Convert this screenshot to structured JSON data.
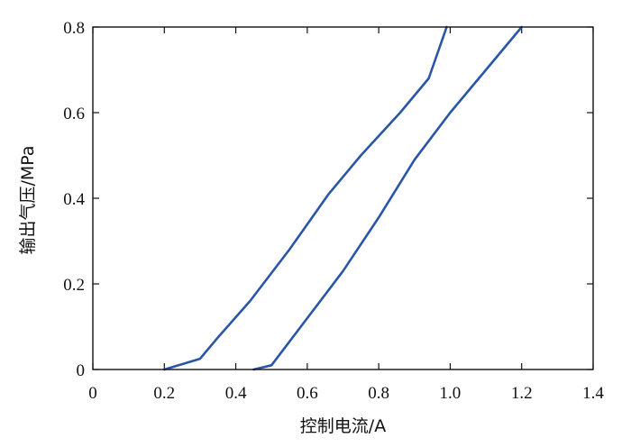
{
  "chart_data": {
    "type": "line",
    "xlabel": "控制电流/A",
    "ylabel": "输出气压/MPa",
    "xlim": [
      0,
      1.4
    ],
    "ylim": [
      0,
      0.8
    ],
    "x_ticks": [
      "0",
      "0.2",
      "0.4",
      "0.6",
      "0.8",
      "1.0",
      "1.2",
      "1.4"
    ],
    "y_ticks": [
      "0",
      "0.2",
      "0.4",
      "0.6",
      "0.8"
    ],
    "grid": false,
    "line_color": "#2a56a8",
    "series": [
      {
        "x": [
          0.2,
          0.28,
          0.3,
          0.35,
          0.44,
          0.55,
          0.66,
          0.75,
          0.86,
          0.94,
          0.99
        ],
        "y": [
          0.0,
          0.02,
          0.025,
          0.075,
          0.16,
          0.28,
          0.41,
          0.5,
          0.6,
          0.68,
          0.8
        ]
      },
      {
        "x": [
          0.45,
          0.5,
          0.6,
          0.7,
          0.8,
          0.9,
          1.0,
          1.1,
          1.2
        ],
        "y": [
          0.0,
          0.01,
          0.12,
          0.23,
          0.355,
          0.49,
          0.6,
          0.7,
          0.8
        ]
      }
    ]
  }
}
